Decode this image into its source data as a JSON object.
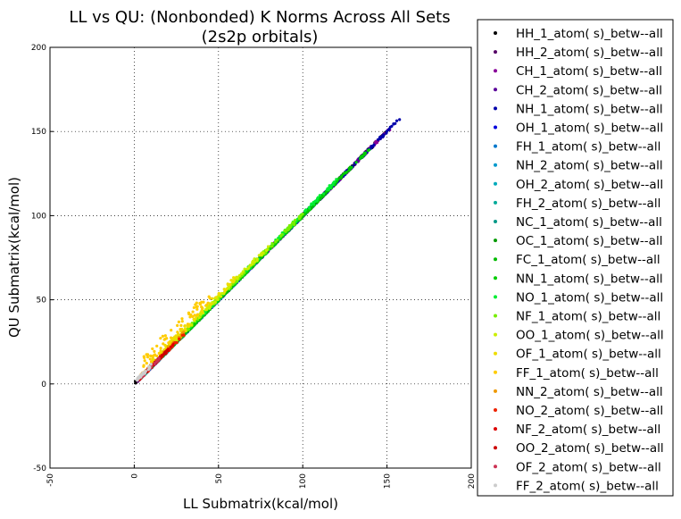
{
  "chart_data": {
    "type": "scatter",
    "title_line1": "LL vs QU: (Nonbonded) K Norms Across All Sets",
    "title_line2": "(2s2p orbitals)",
    "xlabel": "LL Submatrix(kcal/mol)",
    "ylabel": "QU Submatrix(kcal/mol)",
    "xlim": [
      -50,
      200
    ],
    "ylim": [
      -50,
      200
    ],
    "x_ticks": [
      "-50",
      "0",
      "50",
      "100",
      "150",
      "200"
    ],
    "y_ticks": [
      "-50",
      "0",
      "50",
      "100",
      "150",
      "200"
    ],
    "grid": true,
    "legend_position": "right, outside plot",
    "series": [
      {
        "name": "HH_1_atom( s)_betw--all",
        "color": "#000000",
        "range": [
          0,
          150
        ],
        "offset": 0
      },
      {
        "name": "HH_2_atom( s)_betw--all",
        "color": "#550066",
        "range": [
          2,
          148
        ],
        "offset": 0
      },
      {
        "name": "CH_1_atom( s)_betw--all",
        "color": "#880099",
        "range": [
          3,
          152
        ],
        "offset": 0
      },
      {
        "name": "CH_2_atom( s)_betw--all",
        "color": "#5a009a",
        "range": [
          3,
          140
        ],
        "offset": 0
      },
      {
        "name": "NH_1_atom( s)_betw--all",
        "color": "#0000aa",
        "range": [
          3,
          158
        ],
        "offset": 0
      },
      {
        "name": "OH_1_atom( s)_betw--all",
        "color": "#0000dd",
        "range": [
          3,
          120
        ],
        "offset": 0
      },
      {
        "name": "FH_1_atom( s)_betw--all",
        "color": "#0077cc",
        "range": [
          3,
          60
        ],
        "offset": 0
      },
      {
        "name": "NH_2_atom( s)_betw--all",
        "color": "#0099cc",
        "range": [
          3,
          70
        ],
        "offset": 0
      },
      {
        "name": "OH_2_atom( s)_betw--all",
        "color": "#00aabb",
        "range": [
          3,
          55
        ],
        "offset": 0
      },
      {
        "name": "FH_2_atom( s)_betw--all",
        "color": "#00aa99",
        "range": [
          3,
          40
        ],
        "offset": 0
      },
      {
        "name": "NC_1_atom( s)_betw--all",
        "color": "#009988",
        "range": [
          3,
          110
        ],
        "offset": 0
      },
      {
        "name": "OC_1_atom( s)_betw--all",
        "color": "#009900",
        "range": [
          3,
          120
        ],
        "offset": 0
      },
      {
        "name": "FC_1_atom( s)_betw--all",
        "color": "#00bb00",
        "range": [
          10,
          130
        ],
        "offset": 0
      },
      {
        "name": "NN_1_atom( s)_betw--all",
        "color": "#00cc00",
        "range": [
          10,
          140
        ],
        "offset": 0
      },
      {
        "name": "NO_1_atom( s)_betw--all",
        "color": "#00ee33",
        "range": [
          20,
          120
        ],
        "offset": 1
      },
      {
        "name": "NF_1_atom( s)_betw--all",
        "color": "#77ee00",
        "range": [
          20,
          100
        ],
        "offset": 1
      },
      {
        "name": "OO_1_atom( s)_betw--all",
        "color": "#ccee00",
        "range": [
          20,
          80
        ],
        "offset": 2
      },
      {
        "name": "OF_1_atom( s)_betw--all",
        "color": "#eedd00",
        "range": [
          10,
          60
        ],
        "offset": 3
      },
      {
        "name": "FF_1_atom( s)_betw--all",
        "color": "#ffcc00",
        "range": [
          5,
          45
        ],
        "offset": 8
      },
      {
        "name": "NN_2_atom( s)_betw--all",
        "color": "#ee9900",
        "range": [
          3,
          30
        ],
        "offset": 1
      },
      {
        "name": "NO_2_atom( s)_betw--all",
        "color": "#ee2200",
        "range": [
          3,
          30
        ],
        "offset": 0
      },
      {
        "name": "NF_2_atom( s)_betw--all",
        "color": "#dd0000",
        "range": [
          3,
          25
        ],
        "offset": 0
      },
      {
        "name": "OO_2_atom( s)_betw--all",
        "color": "#cc0000",
        "range": [
          3,
          20
        ],
        "offset": 0
      },
      {
        "name": "OF_2_atom( s)_betw--all",
        "color": "#cc3355",
        "range": [
          3,
          15
        ],
        "offset": 0
      },
      {
        "name": "FF_2_atom( s)_betw--all",
        "color": "#cccccc",
        "range": [
          1,
          10
        ],
        "offset": 1
      }
    ]
  }
}
